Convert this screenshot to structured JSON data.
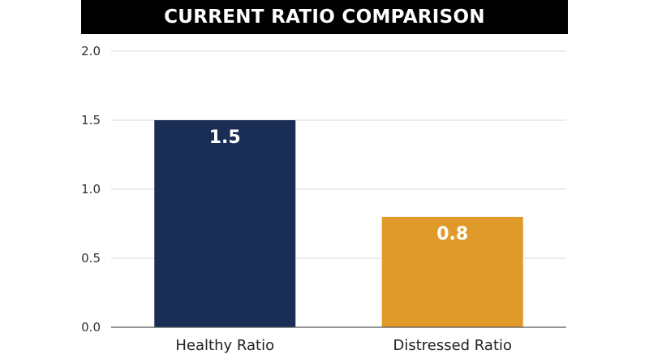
{
  "chart_data": {
    "type": "bar",
    "title": "CURRENT RATIO COMPARISON",
    "categories": [
      "Healthy Ratio",
      "Distressed Ratio"
    ],
    "values": [
      1.5,
      0.8
    ],
    "data_labels": [
      "1.5",
      "0.8"
    ],
    "colors": [
      "#192d55",
      "#e09a2a"
    ],
    "ylim": [
      0,
      2.0
    ],
    "yticks": [
      0.0,
      0.5,
      1.0,
      1.5,
      2.0
    ],
    "ytick_labels": [
      "0.0",
      "0.5",
      "1.0",
      "1.5",
      "2.0"
    ],
    "xlabel": "",
    "ylabel": "",
    "grid": true,
    "legend": "none"
  }
}
